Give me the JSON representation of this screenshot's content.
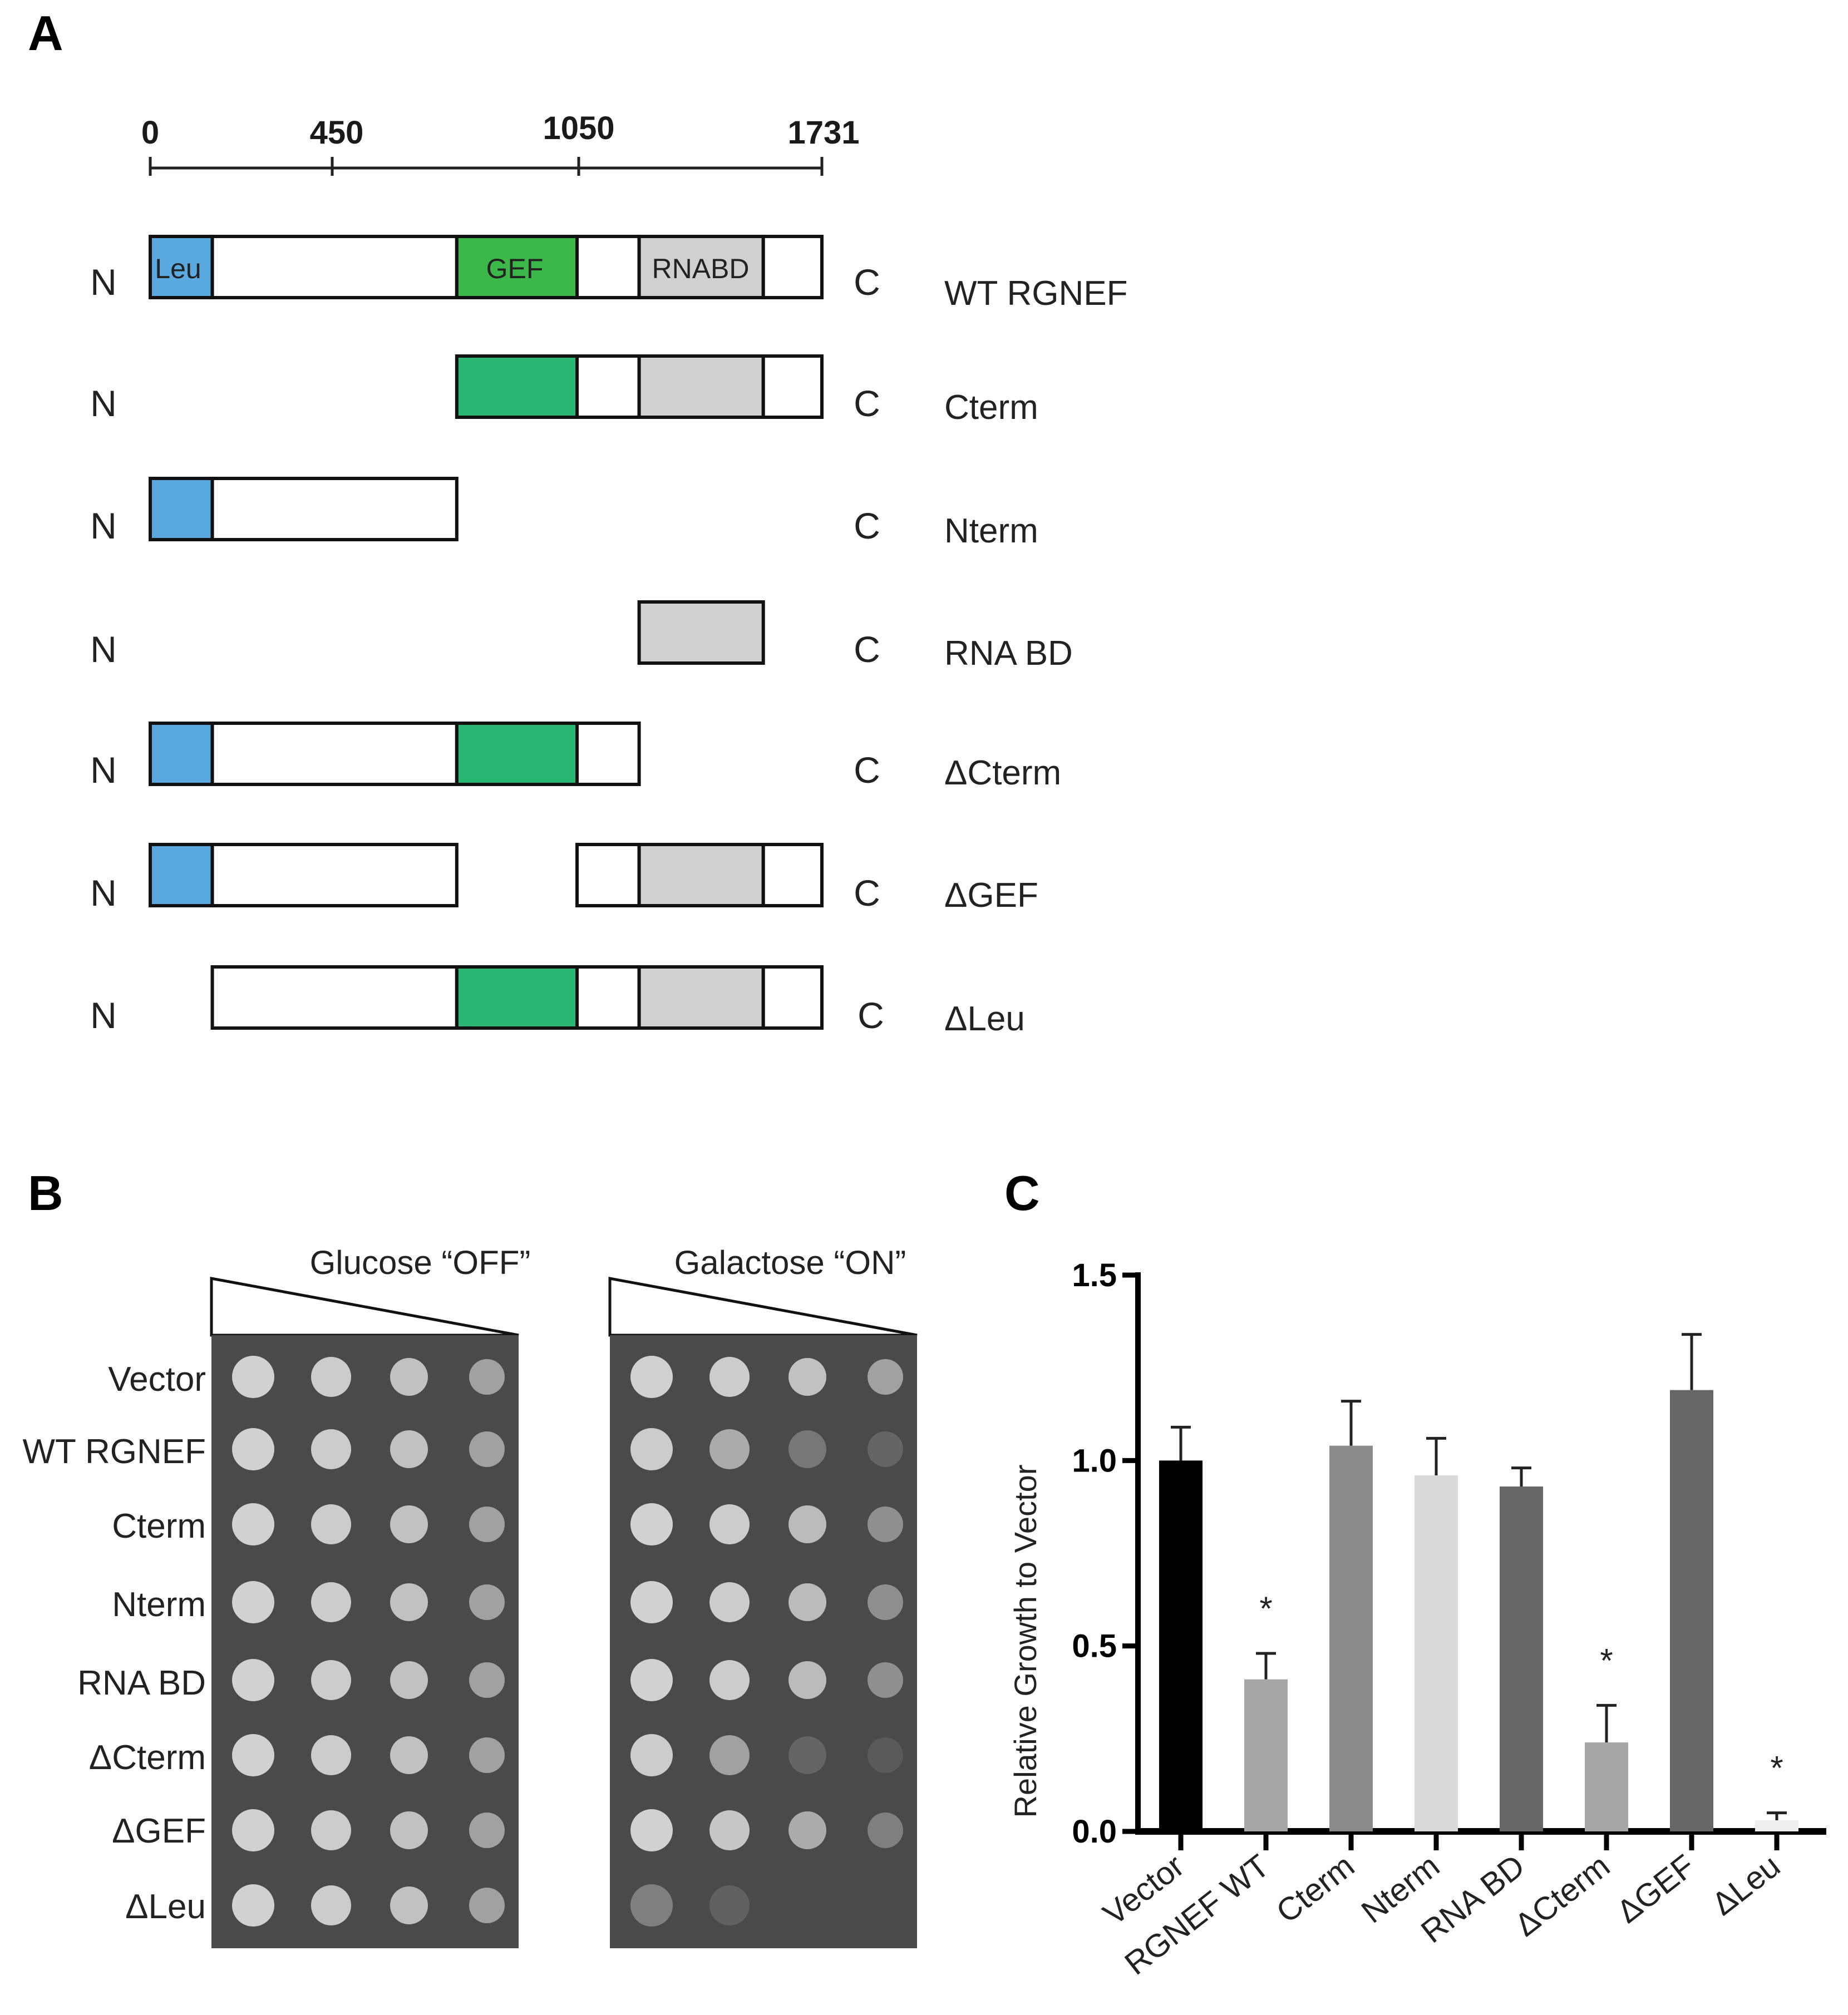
{
  "panels": {
    "a": {
      "letter": "A",
      "ruler_ticks": [
        "0",
        "450",
        "1050",
        "1731"
      ],
      "domain_labels": {
        "leu": "Leu",
        "gef": "GEF",
        "rnabd": "RNABD"
      },
      "n_label": "N",
      "c_label": "C",
      "constructs": [
        {
          "name": "WT RGNEF",
          "segments": [
            [
              "leu",
              0,
              160
            ],
            [
              "plain",
              160,
              790
            ],
            [
              "gef",
              790,
              1100
            ],
            [
              "plain",
              1100,
              1260
            ],
            [
              "rna",
              1260,
              1580
            ],
            [
              "plain",
              1580,
              1731
            ]
          ],
          "labeled": true
        },
        {
          "name": "Cterm",
          "segments": [
            [
              "gef",
              790,
              1100
            ],
            [
              "plain",
              1100,
              1260
            ],
            [
              "rna",
              1260,
              1580
            ],
            [
              "plain",
              1580,
              1731
            ]
          ]
        },
        {
          "name": "Nterm",
          "segments": [
            [
              "leu",
              0,
              160
            ],
            [
              "plain",
              160,
              790
            ]
          ]
        },
        {
          "name": "RNA BD",
          "segments": [
            [
              "rna",
              1260,
              1580
            ]
          ]
        },
        {
          "name": "ΔCterm",
          "segments": [
            [
              "leu",
              0,
              160
            ],
            [
              "plain",
              160,
              790
            ],
            [
              "gef",
              790,
              1100
            ],
            [
              "plain",
              1100,
              1260
            ]
          ]
        },
        {
          "name": "ΔGEF",
          "segments": [
            [
              "leu",
              0,
              160
            ],
            [
              "plain",
              160,
              790
            ],
            [
              "plain",
              1100,
              1260
            ],
            [
              "rna",
              1260,
              1580
            ],
            [
              "plain",
              1580,
              1731
            ]
          ]
        },
        {
          "name": "ΔLeu",
          "segments": [
            [
              "plain",
              160,
              790
            ],
            [
              "gef",
              790,
              1100
            ],
            [
              "plain",
              1100,
              1260
            ],
            [
              "rna",
              1260,
              1580
            ],
            [
              "plain",
              1580,
              1731
            ]
          ]
        }
      ]
    },
    "b": {
      "letter": "B",
      "conditions": [
        "Glucose “OFF”",
        "Galactose “ON”"
      ],
      "strains": [
        "Vector",
        "WT RGNEF",
        "Cterm",
        "Nterm",
        "RNA BD",
        "ΔCterm",
        "ΔGEF",
        "ΔLeu"
      ]
    },
    "c": {
      "letter": "C"
    }
  },
  "colors": {
    "leu": "#5aa9e0",
    "gef": "#2ab673",
    "gef_wt": "#3cb84a",
    "rna": "#d0d0d0"
  },
  "chart_data": {
    "type": "bar",
    "title": "",
    "xlabel": "",
    "ylabel": "Relative Growth to Vector",
    "ylim": [
      0,
      1.5
    ],
    "yticks": [
      "0.0",
      "0.5",
      "1.0",
      "1.5"
    ],
    "categories": [
      "Vector",
      "RGNEF WT",
      "Cterm",
      "Nterm",
      "RNA BD",
      "ΔCterm",
      "ΔGEF",
      "ΔLeu"
    ],
    "values": [
      1.0,
      0.41,
      1.04,
      0.96,
      0.93,
      0.24,
      1.19,
      0.03
    ],
    "errors": [
      0.09,
      0.07,
      0.12,
      0.1,
      0.05,
      0.1,
      0.15,
      0.02
    ],
    "significant": [
      false,
      true,
      false,
      false,
      false,
      true,
      false,
      true
    ],
    "significance_marker": "*",
    "bar_colors": [
      "#000000",
      "#a6a6a6",
      "#8a8a8a",
      "#d9d9d9",
      "#666666",
      "#a6a6a6",
      "#666666",
      "#eeeeee"
    ],
    "grid": false,
    "legend": "none"
  }
}
